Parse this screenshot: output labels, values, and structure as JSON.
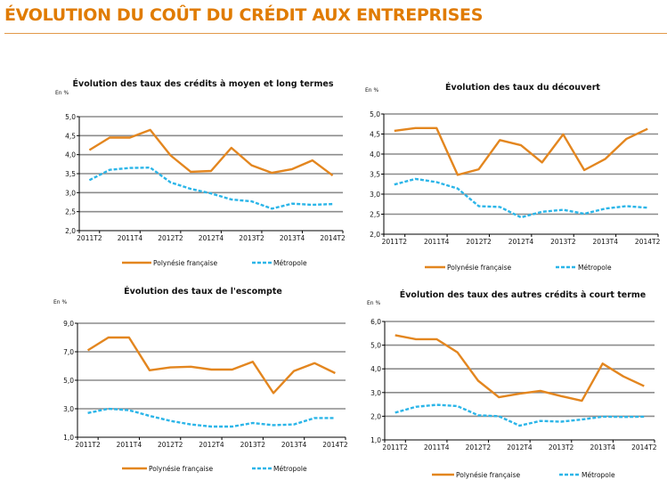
{
  "page_title": "ÉVOLUTION DU COÛT DU CRÉDIT AUX ENTREPRISES",
  "colors": {
    "title": "#E07B00",
    "polynesie": "#E3861F",
    "metropole": "#2BB5E8",
    "grid": "#8C8C8C"
  },
  "chart_data": [
    {
      "type": "line",
      "title": "Évolution des taux des crédits à moyen et long termes",
      "ylabel": "En %",
      "ylim": [
        2.0,
        5.0
      ],
      "y_ticks": [
        "2,0",
        "2,5",
        "3,0",
        "3,5",
        "4,0",
        "4,5",
        "5,0"
      ],
      "x_tick_labels": [
        "2011T2",
        "2011T4",
        "2012T2",
        "2012T4",
        "2013T2",
        "2013T4",
        "2014T2"
      ],
      "grid": true,
      "legend": "bottom",
      "series": [
        {
          "name": "Polynésie française",
          "style": "solid",
          "values": [
            4.12,
            4.45,
            4.45,
            4.65,
            3.98,
            3.55,
            3.57,
            4.18,
            3.72,
            3.52,
            3.62,
            3.85,
            3.45
          ]
        },
        {
          "name": "Métropole",
          "style": "dashed",
          "values": [
            3.33,
            3.6,
            3.65,
            3.66,
            3.27,
            3.1,
            2.98,
            2.82,
            2.77,
            2.58,
            2.71,
            2.68,
            2.7
          ]
        }
      ]
    },
    {
      "type": "line",
      "title": "Évolution des taux du découvert",
      "ylabel": "En %",
      "ylim": [
        2.0,
        5.0
      ],
      "y_ticks": [
        "2,0",
        "2,5",
        "3,0",
        "3,5",
        "4,0",
        "4,5",
        "5,0"
      ],
      "x_tick_labels": [
        "2011T2",
        "2011T4",
        "2012T2",
        "2012T4",
        "2013T2",
        "2013T4",
        "2014T2"
      ],
      "grid": true,
      "legend": "bottom",
      "series": [
        {
          "name": "Polynésie française",
          "style": "solid",
          "values": [
            4.58,
            4.65,
            4.65,
            3.48,
            3.62,
            4.35,
            4.22,
            3.79,
            4.49,
            3.6,
            3.88,
            4.38,
            4.63
          ]
        },
        {
          "name": "Métropole",
          "style": "dashed",
          "values": [
            3.24,
            3.38,
            3.3,
            3.14,
            2.7,
            2.68,
            2.42,
            2.56,
            2.61,
            2.51,
            2.64,
            2.7,
            2.66
          ]
        }
      ]
    },
    {
      "type": "line",
      "title": "Évolution des taux de l'escompte",
      "ylabel": "En %",
      "ylim": [
        1.0,
        9.0
      ],
      "y_ticks": [
        "1,0",
        "3,0",
        "5,0",
        "7,0",
        "9,0"
      ],
      "x_tick_labels": [
        "2011T2",
        "2011T4",
        "2012T2",
        "2012T4",
        "2013T2",
        "2013T4",
        "2014T2"
      ],
      "grid": true,
      "legend": "bottom",
      "series": [
        {
          "name": "Polynésie française",
          "style": "solid",
          "values": [
            7.1,
            8.0,
            8.0,
            5.7,
            5.9,
            5.95,
            5.75,
            5.75,
            6.3,
            4.1,
            5.65,
            6.2,
            5.5
          ]
        },
        {
          "name": "Métropole",
          "style": "dashed",
          "values": [
            2.7,
            3.0,
            2.9,
            2.5,
            2.15,
            1.9,
            1.75,
            1.75,
            2.0,
            1.85,
            1.9,
            2.35,
            2.35
          ]
        }
      ]
    },
    {
      "type": "line",
      "title": "Évolution des taux des autres crédits à court terme",
      "ylabel": "En %",
      "ylim": [
        1.0,
        6.0
      ],
      "y_ticks": [
        "1,0",
        "2,0",
        "3,0",
        "4,0",
        "5,0",
        "6,0"
      ],
      "x_tick_labels": [
        "2011T2",
        "2011T4",
        "2012T2",
        "2012T4",
        "2013T2",
        "2013T4",
        "2014T2"
      ],
      "grid": true,
      "legend": "bottom",
      "series": [
        {
          "name": "Polynésie française",
          "style": "solid",
          "values": [
            5.42,
            5.25,
            5.25,
            4.7,
            3.5,
            2.8,
            2.95,
            3.07,
            2.85,
            2.65,
            4.22,
            3.68,
            3.27
          ]
        },
        {
          "name": "Métropole",
          "style": "dashed",
          "values": [
            2.15,
            2.4,
            2.48,
            2.43,
            2.04,
            2.0,
            1.6,
            1.8,
            1.77,
            1.86,
            1.98,
            1.97,
            1.98
          ]
        }
      ]
    }
  ]
}
